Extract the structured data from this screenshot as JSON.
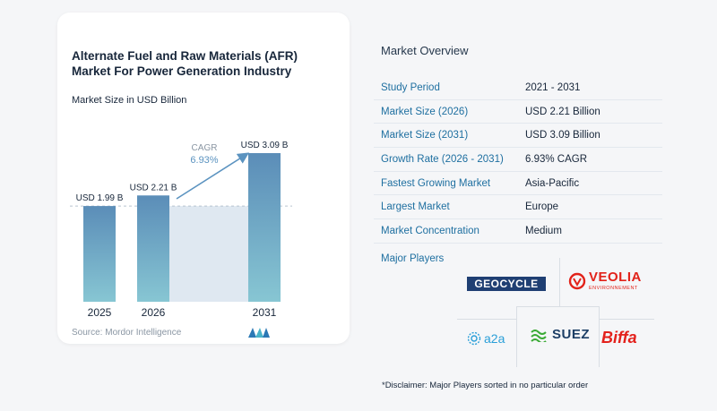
{
  "chart": {
    "title": "Alternate Fuel and Raw Materials (AFR) Market For Power Generation Industry",
    "subtitle": "Market Size in USD Billion",
    "cagr_label": "CAGR",
    "cagr_value": "6.93%",
    "source": "Source: Mordor Intelligence"
  },
  "chart_data": {
    "type": "bar",
    "categories": [
      "2025",
      "2026",
      "2031"
    ],
    "values": [
      1.99,
      2.21,
      3.09
    ],
    "data_labels": [
      "USD 1.99 B",
      "USD 2.21 B",
      "USD 3.09 B"
    ],
    "title": "Alternate Fuel and Raw Materials (AFR) Market For Power Generation Industry",
    "subtitle": "Market Size in USD Billion",
    "annotation": "CAGR 6.93%",
    "ylim": [
      0,
      3.09
    ],
    "grid": false,
    "colors": {
      "bar_top": "#5b8db8",
      "bar_bottom": "#87c6d3",
      "band": "#dfe8f1",
      "arrow": "#5b93c0",
      "dashed": "#b7c3cf"
    }
  },
  "overview": {
    "title": "Market Overview",
    "rows": [
      {
        "key": "Study Period",
        "value": "2021 - 2031"
      },
      {
        "key": "Market Size (2026)",
        "value": "USD 2.21 Billion"
      },
      {
        "key": "Market Size (2031)",
        "value": "USD 3.09 Billion"
      },
      {
        "key": "Growth Rate (2026 - 2031)",
        "value": "6.93% CAGR"
      },
      {
        "key": "Fastest Growing Market",
        "value": "Asia-Pacific"
      },
      {
        "key": "Largest Market",
        "value": "Europe"
      },
      {
        "key": "Market Concentration",
        "value": "Medium"
      }
    ]
  },
  "players": {
    "title": "Major Players",
    "logos": {
      "geocycle": "GEOCYCLE",
      "veolia": "VEOLIA",
      "veolia_sub": "ENVIRONNEMENT",
      "a2a": "a2a",
      "suez": "SUEZ",
      "biffa": "Biffa"
    },
    "disclaimer": "*Disclaimer: Major Players sorted in no particular order"
  }
}
